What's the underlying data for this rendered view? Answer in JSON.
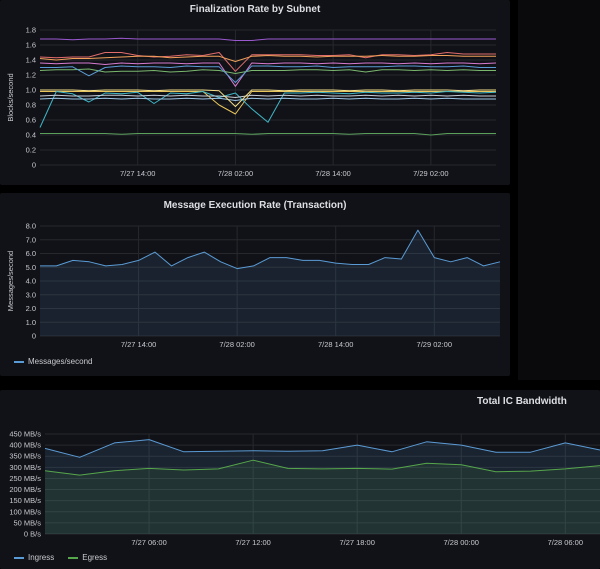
{
  "panels": {
    "finalization": {
      "title": "Finalization Rate by Subnet"
    },
    "messages": {
      "title": "Message Execution Rate (Transaction)"
    },
    "bandwidth": {
      "title": "Total IC Bandwidth"
    }
  },
  "chart_data": [
    {
      "type": "line",
      "title": "Finalization Rate by Subnet",
      "ylabel": "Blocks/second",
      "xlabel": "",
      "ylim": [
        0,
        1.8
      ],
      "yticks": [
        0,
        0.2,
        0.4,
        0.6,
        0.8,
        1.0,
        1.2,
        1.4,
        1.6,
        1.8
      ],
      "ytick_labels": [
        "0",
        "0.2",
        "0.4",
        "0.6",
        "0.8",
        "1.0",
        "1.2",
        "1.4",
        "1.6",
        "1.8"
      ],
      "xtick_labels": [
        "7/27 14:00",
        "7/28 02:00",
        "7/28 14:00",
        "7/29 02:00"
      ],
      "xtick_positions": [
        6,
        12,
        18,
        24
      ],
      "x_count": 29,
      "grid": true,
      "legend": "none",
      "colors": [
        "#9b59d0",
        "#d77bd0",
        "#e06c6c",
        "#f2a05a",
        "#e8c55c",
        "#7ab86e",
        "#5b9bd5",
        "#3fb6c6",
        "#c8cdd6",
        "#a0c7e8",
        "#f5e08a",
        "#5a9f5a"
      ],
      "series": [
        {
          "values": [
            1.68,
            1.68,
            1.67,
            1.68,
            1.68,
            1.69,
            1.68,
            1.68,
            1.68,
            1.68,
            1.68,
            1.68,
            1.66,
            1.66,
            1.68,
            1.68,
            1.68,
            1.68,
            1.68,
            1.68,
            1.68,
            1.68,
            1.68,
            1.68,
            1.68,
            1.68,
            1.68,
            1.68,
            1.68
          ]
        },
        {
          "values": [
            1.36,
            1.35,
            1.36,
            1.36,
            1.34,
            1.36,
            1.35,
            1.36,
            1.36,
            1.35,
            1.36,
            1.36,
            1.05,
            1.36,
            1.35,
            1.36,
            1.36,
            1.35,
            1.36,
            1.35,
            1.36,
            1.36,
            1.35,
            1.36,
            1.35,
            1.36,
            1.36,
            1.35,
            1.36
          ]
        },
        {
          "values": [
            1.44,
            1.43,
            1.44,
            1.44,
            1.5,
            1.5,
            1.46,
            1.44,
            1.45,
            1.47,
            1.46,
            1.5,
            1.25,
            1.47,
            1.47,
            1.47,
            1.47,
            1.46,
            1.46,
            1.47,
            1.43,
            1.47,
            1.47,
            1.46,
            1.47,
            1.5,
            1.48,
            1.48,
            1.48
          ]
        },
        {
          "values": [
            1.42,
            1.4,
            1.42,
            1.42,
            1.43,
            1.44,
            1.45,
            1.45,
            1.43,
            1.44,
            1.45,
            1.45,
            1.38,
            1.45,
            1.46,
            1.45,
            1.45,
            1.44,
            1.45,
            1.45,
            1.45,
            1.46,
            1.45,
            1.45,
            1.46,
            1.46,
            1.45,
            1.45,
            1.45
          ]
        },
        {
          "values": [
            0.98,
            0.98,
            0.98,
            0.98,
            0.98,
            0.98,
            0.98,
            0.98,
            0.98,
            0.98,
            0.98,
            0.8,
            0.68,
            0.98,
            0.98,
            0.98,
            0.98,
            0.98,
            0.98,
            0.98,
            0.98,
            0.98,
            0.98,
            0.98,
            0.98,
            0.98,
            0.98,
            0.98,
            0.98
          ]
        },
        {
          "values": [
            1.26,
            1.27,
            1.27,
            1.28,
            1.24,
            1.25,
            1.25,
            1.26,
            1.24,
            1.25,
            1.27,
            1.26,
            1.22,
            1.26,
            1.26,
            1.26,
            1.27,
            1.27,
            1.26,
            1.27,
            1.24,
            1.27,
            1.27,
            1.26,
            1.27,
            1.26,
            1.27,
            1.26,
            1.26
          ]
        },
        {
          "values": [
            1.3,
            1.3,
            1.31,
            1.19,
            1.3,
            1.32,
            1.31,
            1.31,
            1.3,
            1.32,
            1.31,
            1.31,
            1.1,
            1.32,
            1.32,
            1.31,
            1.31,
            1.32,
            1.3,
            1.31,
            1.31,
            1.31,
            1.32,
            1.32,
            1.31,
            1.31,
            1.32,
            1.3,
            1.3
          ]
        },
        {
          "values": [
            0.5,
            0.98,
            0.95,
            0.84,
            0.96,
            0.95,
            0.97,
            0.82,
            0.96,
            0.95,
            0.98,
            0.9,
            0.96,
            0.75,
            0.57,
            0.96,
            0.96,
            0.97,
            0.96,
            0.95,
            0.97,
            0.96,
            0.96,
            0.97,
            0.96,
            0.98,
            0.97,
            0.96,
            0.97
          ]
        },
        {
          "values": [
            0.92,
            0.93,
            0.92,
            0.92,
            0.93,
            0.93,
            0.92,
            0.93,
            0.92,
            0.93,
            0.92,
            0.92,
            0.9,
            0.93,
            0.92,
            0.93,
            0.92,
            0.93,
            0.92,
            0.92,
            0.93,
            0.92,
            0.93,
            0.92,
            0.93,
            0.92,
            0.93,
            0.92,
            0.92
          ]
        },
        {
          "values": [
            0.88,
            0.89,
            0.88,
            0.88,
            0.89,
            0.88,
            0.89,
            0.88,
            0.88,
            0.89,
            0.88,
            0.89,
            0.86,
            0.89,
            0.88,
            0.89,
            0.88,
            0.88,
            0.89,
            0.88,
            0.89,
            0.88,
            0.88,
            0.89,
            0.88,
            0.89,
            0.88,
            0.88,
            0.88
          ]
        },
        {
          "values": [
            1.0,
            1.0,
            1.0,
            0.99,
            1.0,
            1.0,
            1.0,
            0.99,
            1.0,
            1.0,
            1.0,
            0.99,
            0.78,
            1.0,
            1.0,
            0.99,
            1.0,
            1.0,
            1.0,
            0.99,
            1.0,
            1.0,
            0.99,
            1.0,
            1.0,
            1.0,
            0.99,
            1.0,
            1.0
          ]
        },
        {
          "values": [
            0.42,
            0.42,
            0.42,
            0.42,
            0.42,
            0.41,
            0.42,
            0.42,
            0.42,
            0.42,
            0.42,
            0.42,
            0.42,
            0.41,
            0.42,
            0.42,
            0.42,
            0.42,
            0.42,
            0.41,
            0.42,
            0.42,
            0.42,
            0.42,
            0.4,
            0.42,
            0.42,
            0.42,
            0.42
          ]
        }
      ]
    },
    {
      "type": "area",
      "title": "Message Execution Rate (Transaction)",
      "ylabel": "Messages/second",
      "xlabel": "",
      "ylim": [
        0,
        8.0
      ],
      "yticks": [
        0,
        1,
        2,
        3,
        4,
        5,
        6,
        7,
        8
      ],
      "ytick_labels": [
        "0",
        "1.0",
        "2.0",
        "3.0",
        "4.0",
        "5.0",
        "6.0",
        "7.0",
        "8.0"
      ],
      "xtick_labels": [
        "7/27 14:00",
        "7/28 02:00",
        "7/28 14:00",
        "7/29 02:00"
      ],
      "xtick_positions": [
        6,
        12,
        18,
        24
      ],
      "x_count": 29,
      "grid": true,
      "legend": "bottom-left",
      "colors": [
        "#5b9bd5"
      ],
      "series": [
        {
          "name": "Messages/second",
          "values": [
            5.1,
            5.1,
            5.5,
            5.4,
            5.1,
            5.2,
            5.5,
            6.1,
            5.1,
            5.7,
            6.1,
            5.4,
            4.9,
            5.1,
            5.7,
            5.7,
            5.5,
            5.5,
            5.3,
            5.2,
            5.2,
            5.7,
            5.6,
            7.7,
            5.7,
            5.4,
            5.7,
            5.1,
            5.4
          ]
        }
      ]
    },
    {
      "type": "area",
      "title": "Total IC Bandwidth",
      "xlabel": "",
      "ylabel": "",
      "ylim": [
        0,
        450
      ],
      "yticks": [
        0,
        50,
        100,
        150,
        200,
        250,
        300,
        350,
        400,
        450
      ],
      "ytick_labels": [
        "0 B/s",
        "50 MB/s",
        "100 MB/s",
        "150 MB/s",
        "200 MB/s",
        "250 MB/s",
        "300 MB/s",
        "350 MB/s",
        "400 MB/s",
        "450 MB/s"
      ],
      "xtick_labels": [
        "7/27 06:00",
        "7/27 12:00",
        "7/27 18:00",
        "7/28 00:00",
        "7/28 06:00"
      ],
      "xtick_positions": [
        3,
        6,
        9,
        12,
        15
      ],
      "x_count": 17,
      "grid": true,
      "legend": "bottom-left",
      "colors": [
        "#5b9bd5",
        "#56a64b"
      ],
      "series": [
        {
          "name": "Ingress",
          "values": [
            385,
            345,
            410,
            425,
            370,
            372,
            375,
            372,
            375,
            400,
            370,
            415,
            400,
            368,
            368,
            410,
            378
          ]
        },
        {
          "name": "Egress",
          "values": [
            285,
            265,
            285,
            295,
            288,
            293,
            332,
            295,
            293,
            295,
            292,
            318,
            312,
            280,
            283,
            293,
            308
          ]
        }
      ]
    }
  ]
}
